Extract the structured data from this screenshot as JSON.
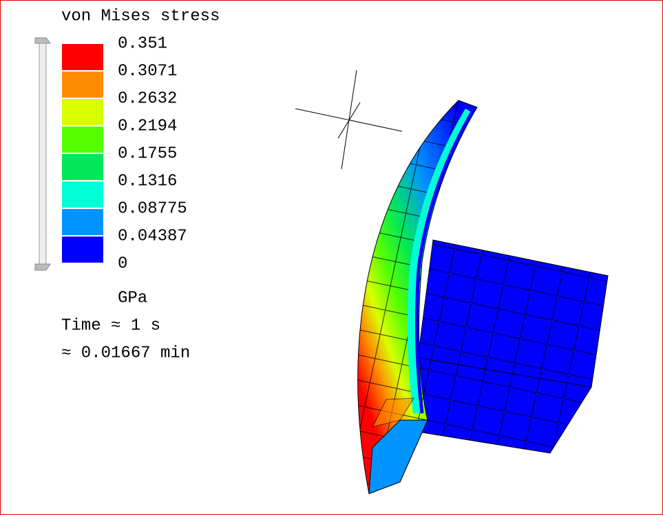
{
  "legend": {
    "title": "von Mises stress",
    "levels": [
      "0.351",
      "0.3071",
      "0.2632",
      "0.2194",
      "0.1755",
      "0.1316",
      "0.08775",
      "0.04387",
      "0"
    ],
    "colors": [
      "#ff0000",
      "#ff8c00",
      "#d8ff00",
      "#55ff00",
      "#00e85a",
      "#00ffd8",
      "#0094ff",
      "#0000ff"
    ],
    "unit": "GPa"
  },
  "time": {
    "line1": "Time ≈ 1 s",
    "line2": "≈ 0.01667 min"
  }
}
